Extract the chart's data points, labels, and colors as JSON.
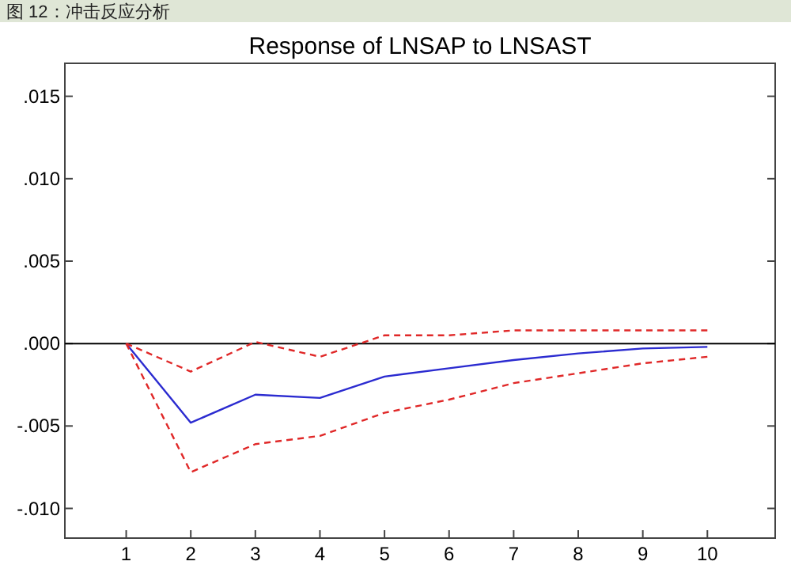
{
  "chart_data": {
    "type": "line",
    "title": "Response of LNSAP to LNSAST",
    "annotations": [
      "图 12：冲击反应分析"
    ],
    "x": [
      1,
      2,
      3,
      4,
      5,
      6,
      7,
      8,
      9,
      10
    ],
    "series": [
      {
        "color": "#2b2bd0",
        "line_style": "solid",
        "values": [
          0,
          -0.0048,
          -0.0031,
          -0.0033,
          -0.002,
          -0.0015,
          -0.001,
          -0.0006,
          -0.0003,
          -0.0002
        ]
      },
      {
        "color": "#e02828",
        "line_style": "dashed",
        "values": [
          0,
          -0.0017,
          0.0001,
          -0.0008,
          0.0005,
          0.0005,
          0.0008,
          0.0008,
          0.0008,
          0.0008
        ]
      },
      {
        "color": "#e02828",
        "line_style": "dashed",
        "values": [
          0,
          -0.0078,
          -0.0061,
          -0.0056,
          -0.0042,
          -0.0034,
          -0.0024,
          -0.0018,
          -0.0012,
          -0.0008
        ]
      }
    ],
    "xlim": [
      0.05,
      11.05
    ],
    "xticks": [
      1,
      2,
      3,
      4,
      5,
      6,
      7,
      8,
      9,
      10
    ],
    "ylim": [
      -0.0118,
      0.017
    ],
    "yticks": [
      {
        "value": -0.01,
        "label": "-.010"
      },
      {
        "value": -0.005,
        "label": "-.005"
      },
      {
        "value": 0,
        "label": ".000"
      },
      {
        "value": 0.005,
        "label": ".005"
      },
      {
        "value": 0.01,
        "label": ".010"
      },
      {
        "value": 0.015,
        "label": ".015"
      }
    ],
    "ref_lines": [
      {
        "axis": "y",
        "value": 0,
        "color": "#000000",
        "line_style": "solid"
      }
    ],
    "grid": false
  }
}
